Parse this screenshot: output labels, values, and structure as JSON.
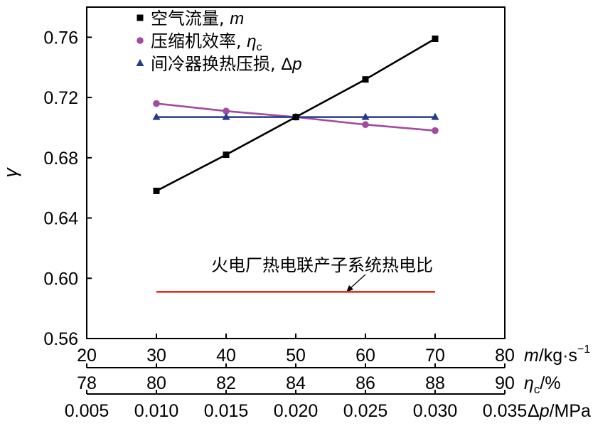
{
  "chart_data": {
    "type": "line",
    "ylabel": "γ",
    "ylim": [
      0.56,
      0.78
    ],
    "yticks": [
      "0.56",
      "0.60",
      "0.64",
      "0.68",
      "0.72",
      "0.76"
    ],
    "x_index": [
      30,
      40,
      50,
      60,
      70
    ],
    "xlim": [
      20,
      80
    ],
    "x_axes": [
      {
        "id": "m",
        "ticks": [
          "20",
          "30",
          "40",
          "50",
          "60",
          "70",
          "80"
        ],
        "label_var": "m",
        "label_unit": "/kg·s",
        "label_sup": "−1"
      },
      {
        "id": "eta",
        "ticks": [
          "78",
          "80",
          "82",
          "84",
          "86",
          "88",
          "90"
        ],
        "label_var": "η",
        "label_sub": "c",
        "label_unit": "/%"
      },
      {
        "id": "dp",
        "ticks": [
          "0.005",
          "0.010",
          "0.015",
          "0.020",
          "0.025",
          "0.030",
          "0.035"
        ],
        "label_delta": "Δ",
        "label_var": "p",
        "label_unit": "/MPa"
      }
    ],
    "series": [
      {
        "name": "空气流量, ",
        "var": "m",
        "color": "#000000",
        "marker": "square",
        "values": [
          0.658,
          0.682,
          0.707,
          0.732,
          0.759
        ]
      },
      {
        "name": "压缩机效率, ",
        "var": "η",
        "sub": "c",
        "color": "#a24ba0",
        "marker": "circle",
        "values": [
          0.716,
          0.711,
          0.707,
          0.702,
          0.698
        ]
      },
      {
        "name": "间冷器换热压损, ",
        "delta": "Δ",
        "var": "p",
        "color": "#273a8e",
        "marker": "triangle",
        "values": [
          0.707,
          0.707,
          0.707,
          0.707,
          0.707
        ]
      }
    ],
    "reference_line": {
      "label": "火电厂热电联产子系统热电比",
      "value": 0.591,
      "x_range": [
        30,
        70
      ],
      "color": "#e8291c"
    }
  }
}
